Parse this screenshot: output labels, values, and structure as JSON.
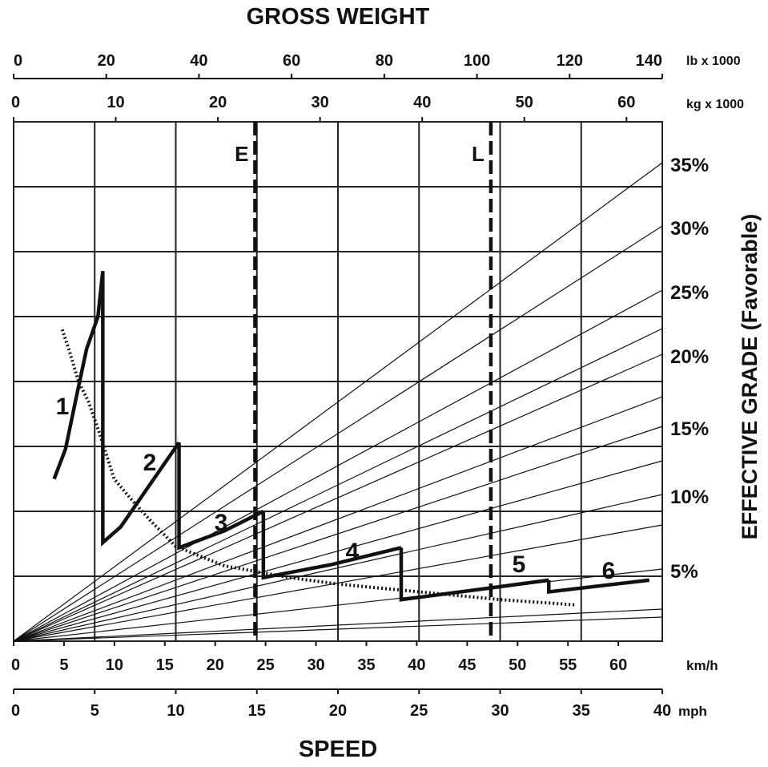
{
  "chart_data": {
    "type": "line",
    "title": "GROSS WEIGHT",
    "xlabel": "SPEED",
    "ylabel": "EFFECTIVE GRADE (Favorable)",
    "grid": true,
    "xlim_mph": [
      0,
      40
    ],
    "ylim_grade_pct": [
      0,
      40
    ],
    "axes": {
      "lb": {
        "unit": "lb x 1000",
        "ticks": [
          0,
          20,
          40,
          60,
          80,
          100,
          120,
          140
        ]
      },
      "kg": {
        "unit": "kg x 1000",
        "ticks": [
          0,
          10,
          20,
          30,
          40,
          50,
          60
        ]
      },
      "kmh": {
        "unit": "km/h",
        "ticks": [
          0,
          5,
          10,
          15,
          20,
          25,
          30,
          35,
          40,
          45,
          50,
          55,
          60
        ]
      },
      "mph": {
        "unit": "mph",
        "ticks": [
          0,
          5,
          10,
          15,
          20,
          25,
          30,
          35,
          40
        ]
      },
      "grade": {
        "labels": [
          "5%",
          "10%",
          "15%",
          "20%",
          "25%",
          "30%",
          "35%"
        ],
        "values": [
          5,
          10,
          15,
          20,
          25,
          30,
          35
        ]
      }
    },
    "weight_lines": [
      {
        "name": "E",
        "weight_lb_x1000": 52.1
      },
      {
        "name": "L",
        "weight_lb_x1000": 103
      }
    ],
    "series": [
      {
        "name": "1",
        "points": [
          [
            2.5,
            12.5
          ],
          [
            3.2,
            14.8
          ],
          [
            3.9,
            19
          ],
          [
            4.5,
            22.5
          ],
          [
            5.2,
            25
          ],
          [
            5.5,
            28.5
          ]
        ]
      },
      {
        "name": "2",
        "points": [
          [
            5.5,
            28.5
          ],
          [
            5.5,
            7.6
          ],
          [
            6.6,
            8.8
          ],
          [
            10.2,
            15.3
          ]
        ]
      },
      {
        "name": "3",
        "points": [
          [
            10.2,
            15.3
          ],
          [
            10.2,
            7.2
          ],
          [
            13,
            8.5
          ],
          [
            15.4,
            10
          ]
        ]
      },
      {
        "name": "4",
        "points": [
          [
            15.4,
            10
          ],
          [
            15.4,
            4.9
          ],
          [
            19.6,
            5.9
          ],
          [
            23.9,
            7.2
          ]
        ]
      },
      {
        "name": "5",
        "points": [
          [
            23.9,
            7.2
          ],
          [
            23.9,
            3.2
          ],
          [
            30,
            4.2
          ],
          [
            33,
            4.7
          ]
        ]
      },
      {
        "name": "6",
        "points": [
          [
            33,
            4.7
          ],
          [
            33,
            3.8
          ],
          [
            39.2,
            4.7
          ]
        ]
      }
    ],
    "retarder_limit": {
      "points": [
        [
          3,
          24
        ],
        [
          3.4,
          22.5
        ],
        [
          4,
          20
        ],
        [
          4.6,
          18.5
        ],
        [
          5.3,
          16
        ],
        [
          6.2,
          12.5
        ],
        [
          7.2,
          11
        ],
        [
          8.5,
          9.2
        ],
        [
          10,
          7.3
        ],
        [
          13,
          5.8
        ],
        [
          17,
          4.9
        ],
        [
          20,
          4.4
        ],
        [
          25,
          3.8
        ],
        [
          30,
          3.2
        ],
        [
          34.6,
          2.8
        ]
      ]
    },
    "labels": {
      "gross_weight": "GROSS WEIGHT",
      "speed": "SPEED",
      "effective_grade": "EFFECTIVE GRADE (Favorable)"
    }
  }
}
